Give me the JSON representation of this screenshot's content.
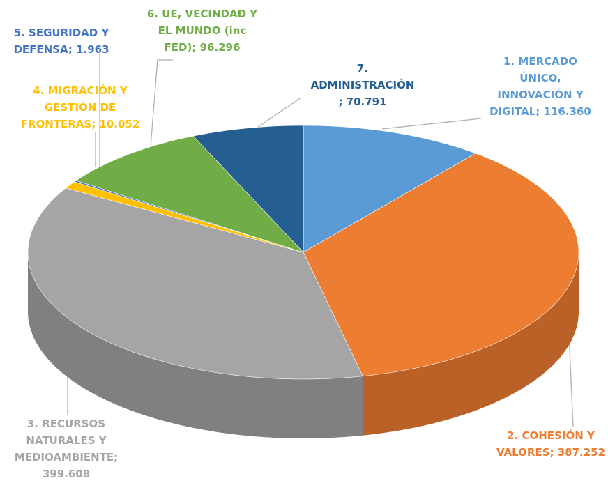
{
  "chart_data": {
    "type": "pie3d",
    "values": [
      116360,
      387252,
      399608,
      10052,
      1963,
      96296,
      70791
    ],
    "value_labels": [
      "1. MERCADO ÚNICO, INNOVACIÓN Y DIGITAL; 116.360",
      "2. COHESIÓN Y VALORES; 387.252",
      "3. RECURSOS NATURALES Y MEDIOAMBIENTE; 399.608",
      "4. MIGRACIÓN Y GESTIÓN DE FRONTERAS; 10.052",
      "5. SEGURIDAD Y DEFENSA; 1.963",
      "6. UE, VECINDAD Y EL MUNDO (inc FED); 96.296",
      "7. ADMINISTRACIÓN ; 70.791"
    ],
    "colors": [
      "#5b9bd5",
      "#ed7d31",
      "#a5a5a5",
      "#ffc000",
      "#4472c4",
      "#70ad47",
      "#255e91"
    ]
  }
}
